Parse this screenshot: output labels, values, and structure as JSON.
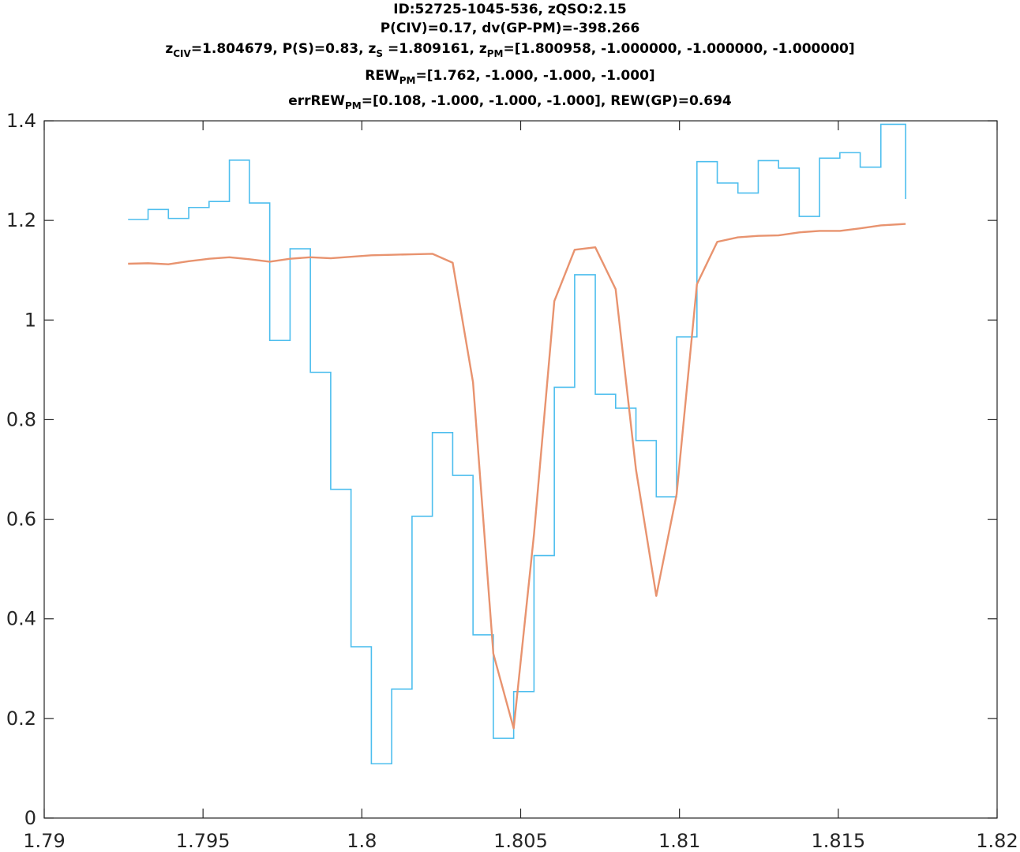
{
  "chart_data": {
    "type": "line",
    "title_lines": [
      [
        {
          "t": "ID:52725-1045-536, zQSO:2.15"
        }
      ],
      [
        {
          "t": "P(CIV)=0.17, dv(GP-PM)=-398.266"
        }
      ],
      [
        {
          "t": "z"
        },
        {
          "t": "CIV",
          "sub": true
        },
        {
          "t": "=1.804679, P(S)=0.83, z"
        },
        {
          "t": "S",
          "sub": true
        },
        {
          "t": " =1.809161, z"
        },
        {
          "t": "PM",
          "sub": true
        },
        {
          "t": "=[1.800958, -1.000000, -1.000000, -1.000000]"
        }
      ],
      [
        {
          "t": "REW"
        },
        {
          "t": "PM",
          "sub": true
        },
        {
          "t": "=[1.762, -1.000, -1.000, -1.000]"
        }
      ],
      [
        {
          "t": "errREW"
        },
        {
          "t": "PM",
          "sub": true
        },
        {
          "t": "=[0.108, -1.000, -1.000, -1.000], REW(GP)=0.694"
        }
      ]
    ],
    "xlim": [
      1.79,
      1.82
    ],
    "ylim": [
      0,
      1.4
    ],
    "xticks": [
      "1.79",
      "1.795",
      "1.8",
      "1.805",
      "1.81",
      "1.815",
      "1.82"
    ],
    "yticks": [
      "0",
      "0.2",
      "0.4",
      "0.6",
      "0.8",
      "1",
      "1.2",
      "1.4"
    ],
    "grid": false,
    "colors": {
      "flux": "#4DBEEE",
      "model": "#E8936F",
      "axes": "#262626"
    },
    "series": [
      {
        "style": "stairs",
        "x": [
          1.79264,
          1.79327,
          1.79391,
          1.79455,
          1.79519,
          1.79583,
          1.79646,
          1.7971,
          1.79774,
          1.79838,
          1.79902,
          1.79966,
          1.8003,
          1.80094,
          1.80158,
          1.80222,
          1.80286,
          1.8035,
          1.80414,
          1.80478,
          1.80542,
          1.80606,
          1.8067,
          1.80735,
          1.80799,
          1.80863,
          1.80927,
          1.80991,
          1.81055,
          1.81119,
          1.81184,
          1.81248,
          1.81312,
          1.81377,
          1.81441,
          1.81505,
          1.81569,
          1.81634
        ],
        "y": [
          1.202,
          1.222,
          1.204,
          1.226,
          1.238,
          1.321,
          1.235,
          0.959,
          1.143,
          0.895,
          0.66,
          0.344,
          0.109,
          0.259,
          0.606,
          0.774,
          0.688,
          0.368,
          0.16,
          0.254,
          0.527,
          0.865,
          1.091,
          0.851,
          0.823,
          0.758,
          0.645,
          0.966,
          1.318,
          1.275,
          1.255,
          1.32,
          1.305,
          1.208,
          1.325,
          1.336,
          1.307,
          1.393
        ],
        "x_end": 1.81712,
        "y_end": 1.243
      },
      {
        "style": "line",
        "x": [
          1.79264,
          1.79327,
          1.79391,
          1.79455,
          1.79519,
          1.79583,
          1.79646,
          1.7971,
          1.79774,
          1.79838,
          1.79902,
          1.79966,
          1.8003,
          1.80094,
          1.80158,
          1.80222,
          1.80286,
          1.8035,
          1.80414,
          1.80478,
          1.80542,
          1.80606,
          1.8067,
          1.80735,
          1.80799,
          1.80863,
          1.80927,
          1.80991,
          1.81055,
          1.81119,
          1.81184,
          1.81248,
          1.81312,
          1.81377,
          1.81441,
          1.81505,
          1.81569,
          1.81634,
          1.81712
        ],
        "y": [
          1.113,
          1.114,
          1.112,
          1.118,
          1.123,
          1.126,
          1.122,
          1.117,
          1.123,
          1.126,
          1.124,
          1.127,
          1.13,
          1.131,
          1.132,
          1.133,
          1.115,
          0.875,
          0.33,
          0.18,
          0.57,
          1.038,
          1.141,
          1.146,
          1.062,
          0.7,
          0.446,
          0.65,
          1.072,
          1.157,
          1.166,
          1.169,
          1.17,
          1.176,
          1.179,
          1.179,
          1.184,
          1.19,
          1.193
        ]
      }
    ]
  }
}
